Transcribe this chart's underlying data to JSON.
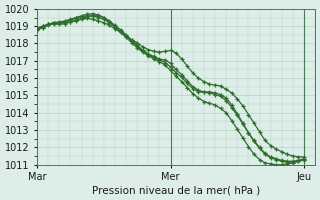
{
  "title": "",
  "xlabel": "Pression niveau de la mer( hPa )",
  "ylim": [
    1011,
    1020
  ],
  "yticks": [
    1011,
    1012,
    1013,
    1014,
    1015,
    1016,
    1017,
    1018,
    1019,
    1020
  ],
  "xtick_labels": [
    "Mar",
    "Mer",
    "Jeu"
  ],
  "xtick_positions": [
    0,
    24,
    48
  ],
  "xlim": [
    0,
    50
  ],
  "bg_color": "#ddeee8",
  "grid_color": "#b8d0c4",
  "line_color": "#2d6e2d",
  "line1": [
    1018.8,
    1018.9,
    1019.05,
    1019.15,
    1019.1,
    1019.15,
    1019.25,
    1019.3,
    1019.4,
    1019.45,
    1019.4,
    1019.3,
    1019.2,
    1019.05,
    1018.85,
    1018.65,
    1018.45,
    1018.2,
    1018.05,
    1017.8,
    1017.65,
    1017.55,
    1017.5,
    1017.55,
    1017.6,
    1017.45,
    1017.1,
    1016.7,
    1016.3,
    1016.0,
    1015.8,
    1015.65,
    1015.6,
    1015.55,
    1015.35,
    1015.15,
    1014.8,
    1014.4,
    1013.9,
    1013.4,
    1012.9,
    1012.4,
    1012.1,
    1011.9,
    1011.75,
    1011.6,
    1011.5,
    1011.45,
    1011.45
  ],
  "line2": [
    1018.85,
    1018.95,
    1019.1,
    1019.2,
    1019.2,
    1019.25,
    1019.35,
    1019.45,
    1019.55,
    1019.6,
    1019.6,
    1019.5,
    1019.4,
    1019.2,
    1018.95,
    1018.7,
    1018.45,
    1018.15,
    1017.85,
    1017.55,
    1017.35,
    1017.2,
    1017.05,
    1016.9,
    1016.65,
    1016.3,
    1016.05,
    1015.7,
    1015.4,
    1015.2,
    1015.2,
    1015.15,
    1015.05,
    1014.95,
    1014.7,
    1014.3,
    1013.85,
    1013.35,
    1012.85,
    1012.4,
    1012.0,
    1011.65,
    1011.45,
    1011.35,
    1011.25,
    1011.2,
    1011.2,
    1011.25,
    1011.35
  ],
  "line3": [
    1018.85,
    1019.0,
    1019.1,
    1019.2,
    1019.25,
    1019.3,
    1019.4,
    1019.5,
    1019.6,
    1019.7,
    1019.72,
    1019.65,
    1019.5,
    1019.25,
    1018.95,
    1018.65,
    1018.35,
    1018.05,
    1017.75,
    1017.5,
    1017.3,
    1017.1,
    1016.95,
    1016.75,
    1016.45,
    1016.1,
    1015.8,
    1015.45,
    1015.1,
    1014.85,
    1014.65,
    1014.55,
    1014.45,
    1014.25,
    1014.0,
    1013.55,
    1013.05,
    1012.55,
    1012.05,
    1011.6,
    1011.3,
    1011.1,
    1011.05,
    1011.0,
    1011.0,
    1011.05,
    1011.1,
    1011.2,
    1011.3
  ],
  "line4": [
    1018.9,
    1019.0,
    1019.1,
    1019.2,
    1019.2,
    1019.2,
    1019.25,
    1019.35,
    1019.45,
    1019.55,
    1019.6,
    1019.6,
    1019.5,
    1019.3,
    1019.05,
    1018.8,
    1018.5,
    1018.2,
    1017.9,
    1017.6,
    1017.4,
    1017.25,
    1017.1,
    1017.05,
    1016.85,
    1016.5,
    1016.2,
    1015.85,
    1015.5,
    1015.3,
    1015.2,
    1015.2,
    1015.15,
    1015.05,
    1014.85,
    1014.45,
    1013.95,
    1013.4,
    1012.85,
    1012.35,
    1011.95,
    1011.6,
    1011.4,
    1011.3,
    1011.2,
    1011.15,
    1011.15,
    1011.2,
    1011.3
  ]
}
